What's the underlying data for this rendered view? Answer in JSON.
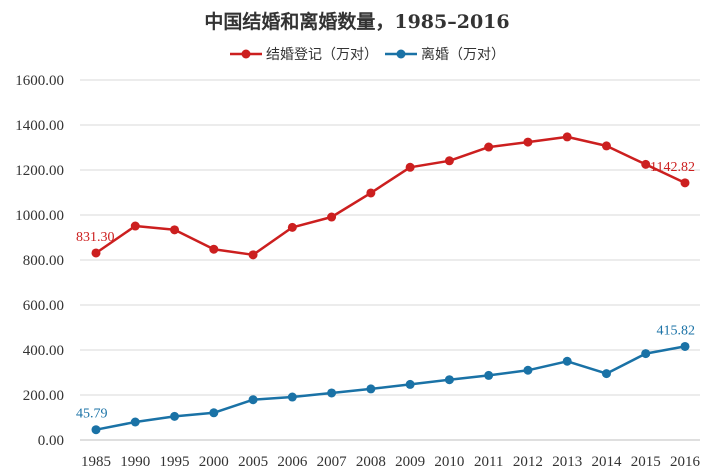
{
  "chart_data": {
    "type": "line",
    "title": "中国结婚和离婚数量，1985–2016",
    "xlabel": "",
    "ylabel": "",
    "categories": [
      "1985",
      "1990",
      "1995",
      "2000",
      "2005",
      "2006",
      "2007",
      "2008",
      "2009",
      "2010",
      "2011",
      "2012",
      "2013",
      "2014",
      "2015",
      "2016"
    ],
    "ylim": [
      0,
      1600
    ],
    "yticks": [
      "0.00",
      "200.00",
      "400.00",
      "600.00",
      "800.00",
      "1000.00",
      "1200.00",
      "1400.00",
      "1600.00"
    ],
    "grid": true,
    "legend_position": "top-center",
    "series": [
      {
        "name": "结婚登记（万对）",
        "color": "#cc1f1f",
        "values": [
          831.3,
          951,
          934,
          848,
          823,
          945,
          991,
          1098,
          1212,
          1241,
          1302,
          1324,
          1347,
          1307,
          1225,
          1142.82
        ],
        "labels": [
          {
            "index": 0,
            "text": "831.30"
          },
          {
            "index": 15,
            "text": "1142.82"
          }
        ]
      },
      {
        "name": "离婚（万对）",
        "color": "#1a72a6",
        "values": [
          45.79,
          80,
          105,
          121,
          179,
          191,
          209,
          227,
          247,
          268,
          287,
          310,
          350,
          295,
          384,
          415.82
        ],
        "labels": [
          {
            "index": 0,
            "text": "45.79"
          },
          {
            "index": 15,
            "text": "415.82"
          }
        ]
      }
    ]
  }
}
